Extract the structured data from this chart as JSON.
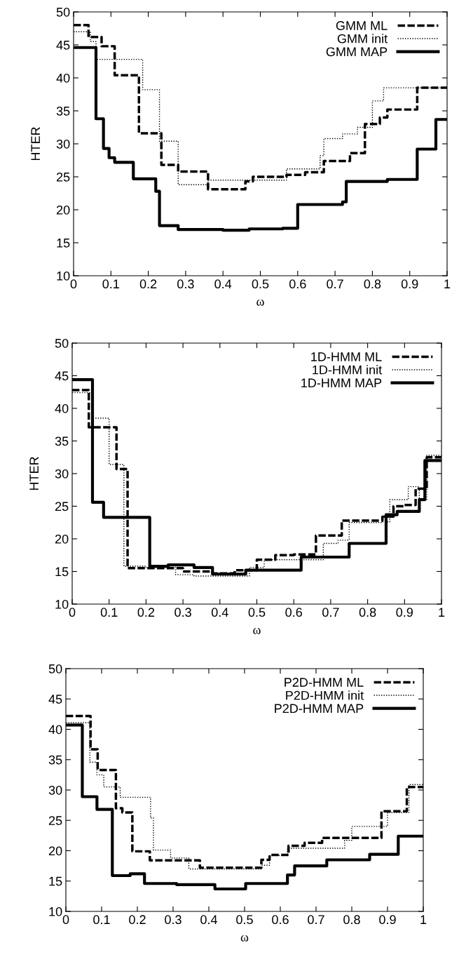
{
  "chart_data": [
    {
      "type": "step",
      "xlabel": "ω",
      "ylabel": "HTER",
      "xlim": [
        0,
        1
      ],
      "ylim": [
        10,
        50
      ],
      "xticks": [
        0,
        0.1,
        0.2,
        0.3,
        0.4,
        0.5,
        0.6,
        0.7,
        0.8,
        0.9,
        1
      ],
      "yticks": [
        10,
        15,
        20,
        25,
        30,
        35,
        40,
        45,
        50
      ],
      "legend": "top right",
      "grid": false,
      "series": [
        {
          "name": "GMM ML",
          "color": "#000000",
          "line_style": "dashed",
          "x": [
            0,
            0.04,
            0.075,
            0.11,
            0.175,
            0.235,
            0.28,
            0.36,
            0.46,
            0.48,
            0.57,
            0.62,
            0.67,
            0.74,
            0.78,
            0.82,
            0.84,
            0.92,
            1
          ],
          "values": [
            48,
            46.2,
            44.8,
            40.4,
            31.6,
            26.8,
            25.8,
            23.1,
            24.3,
            25,
            25.3,
            25.7,
            27.4,
            28.6,
            33,
            34,
            35.2,
            38.5,
            38.5
          ]
        },
        {
          "name": "GMM init",
          "color": "#000000",
          "line_style": "dotted",
          "x": [
            0,
            0.045,
            0.06,
            0.185,
            0.23,
            0.28,
            0.36,
            0.46,
            0.57,
            0.66,
            0.67,
            0.72,
            0.76,
            0.8,
            0.83,
            1
          ],
          "values": [
            47,
            45.5,
            42.8,
            38.2,
            30.4,
            23.8,
            24.5,
            24.5,
            26.2,
            28.2,
            30.8,
            31.5,
            32.5,
            36.5,
            38.5,
            38.5
          ]
        },
        {
          "name": "GMM MAP",
          "color": "#000000",
          "line_style": "solid",
          "x": [
            0,
            0.06,
            0.08,
            0.095,
            0.11,
            0.16,
            0.22,
            0.23,
            0.28,
            0.4,
            0.47,
            0.56,
            0.6,
            0.72,
            0.73,
            0.84,
            0.92,
            0.97,
            1
          ],
          "values": [
            44.6,
            33.8,
            29.3,
            27.9,
            27.2,
            24.7,
            22.8,
            17.6,
            17,
            16.9,
            17.1,
            17.2,
            20.8,
            21.2,
            24.3,
            24.6,
            29.2,
            33.7,
            33.7
          ]
        }
      ]
    },
    {
      "type": "step",
      "xlabel": "ω",
      "ylabel": "HTER",
      "xlim": [
        0,
        1
      ],
      "ylim": [
        10,
        50
      ],
      "xticks": [
        0,
        0.1,
        0.2,
        0.3,
        0.4,
        0.5,
        0.6,
        0.7,
        0.8,
        0.9,
        1
      ],
      "yticks": [
        10,
        15,
        20,
        25,
        30,
        35,
        40,
        45,
        50
      ],
      "legend": "top right",
      "grid": false,
      "series": [
        {
          "name": "1D-HMM ML",
          "color": "#000000",
          "line_style": "dashed",
          "x": [
            0,
            0.045,
            0.12,
            0.15,
            0.3,
            0.38,
            0.44,
            0.5,
            0.55,
            0.6,
            0.66,
            0.73,
            0.84,
            0.87,
            0.9,
            0.93,
            0.96,
            1
          ],
          "values": [
            42.8,
            37.1,
            30.7,
            15.5,
            15,
            14.7,
            15.2,
            16.8,
            17.5,
            17.6,
            20.5,
            22.8,
            23.4,
            25,
            25.2,
            27.7,
            32.5,
            32.5
          ]
        },
        {
          "name": "1D-HMM init",
          "color": "#000000",
          "line_style": "dotted",
          "x": [
            0,
            0.055,
            0.1,
            0.14,
            0.2,
            0.28,
            0.33,
            0.48,
            0.52,
            0.6,
            0.68,
            0.72,
            0.75,
            0.84,
            0.86,
            0.91,
            0.94,
            0.96,
            1
          ],
          "values": [
            42.4,
            38.5,
            31.4,
            15.8,
            15.6,
            14.5,
            14.3,
            15.6,
            16.8,
            16.8,
            19.3,
            19.8,
            22.5,
            22.6,
            26,
            28,
            26,
            32.8,
            32.8
          ]
        },
        {
          "name": "1D-HMM MAP",
          "color": "#000000",
          "line_style": "solid",
          "x": [
            0,
            0.055,
            0.085,
            0.21,
            0.26,
            0.33,
            0.38,
            0.47,
            0.62,
            0.75,
            0.85,
            0.88,
            0.94,
            0.955,
            1
          ],
          "values": [
            44.4,
            25.6,
            23.3,
            15.8,
            16,
            15.6,
            14.6,
            15.2,
            17.2,
            19.3,
            23.7,
            24.2,
            26,
            32,
            32
          ]
        }
      ]
    },
    {
      "type": "step",
      "xlabel": "ω",
      "xlim": [
        0,
        1
      ],
      "ylim": [
        10,
        50
      ],
      "xticks": [
        0,
        0.1,
        0.2,
        0.3,
        0.4,
        0.5,
        0.6,
        0.7,
        0.8,
        0.9,
        1
      ],
      "yticks": [
        10,
        15,
        20,
        25,
        30,
        35,
        40,
        45,
        50
      ],
      "legend": "top right",
      "grid": false,
      "series": [
        {
          "name": "P2D-HMM ML",
          "color": "#000000",
          "line_style": "dashed",
          "x": [
            0,
            0.069,
            0.089,
            0.14,
            0.158,
            0.186,
            0.235,
            0.375,
            0.547,
            0.57,
            0.623,
            0.668,
            0.717,
            0.883,
            0.954,
            1
          ],
          "values": [
            42.2,
            36.7,
            33.3,
            27,
            26.3,
            19.9,
            18.4,
            17.2,
            18.5,
            19.3,
            20.8,
            21.3,
            22.1,
            26.5,
            30.5,
            30.5
          ]
        },
        {
          "name": "P2D-HMM init",
          "color": "#000000",
          "line_style": "dotted",
          "x": [
            0,
            0.067,
            0.087,
            0.106,
            0.152,
            0.237,
            0.245,
            0.293,
            0.344,
            0.547,
            0.57,
            0.62,
            0.78,
            0.8,
            0.9,
            0.96,
            1
          ],
          "values": [
            41.1,
            34.6,
            32.5,
            30.5,
            28.8,
            25.4,
            20.1,
            18.8,
            17,
            17.6,
            19.2,
            20.4,
            21.7,
            24,
            26.3,
            30.9,
            30.9
          ]
        },
        {
          "name": "P2D-HMM MAP",
          "color": "#000000",
          "line_style": "solid",
          "x": [
            0,
            0.046,
            0.087,
            0.13,
            0.18,
            0.22,
            0.31,
            0.417,
            0.503,
            0.62,
            0.64,
            0.73,
            0.85,
            0.93,
            1
          ],
          "values": [
            40.7,
            28.9,
            26.8,
            15.9,
            16.2,
            14.6,
            14.4,
            13.7,
            14.6,
            16,
            17.5,
            18.5,
            19.4,
            22.4,
            22.4
          ]
        }
      ]
    }
  ]
}
